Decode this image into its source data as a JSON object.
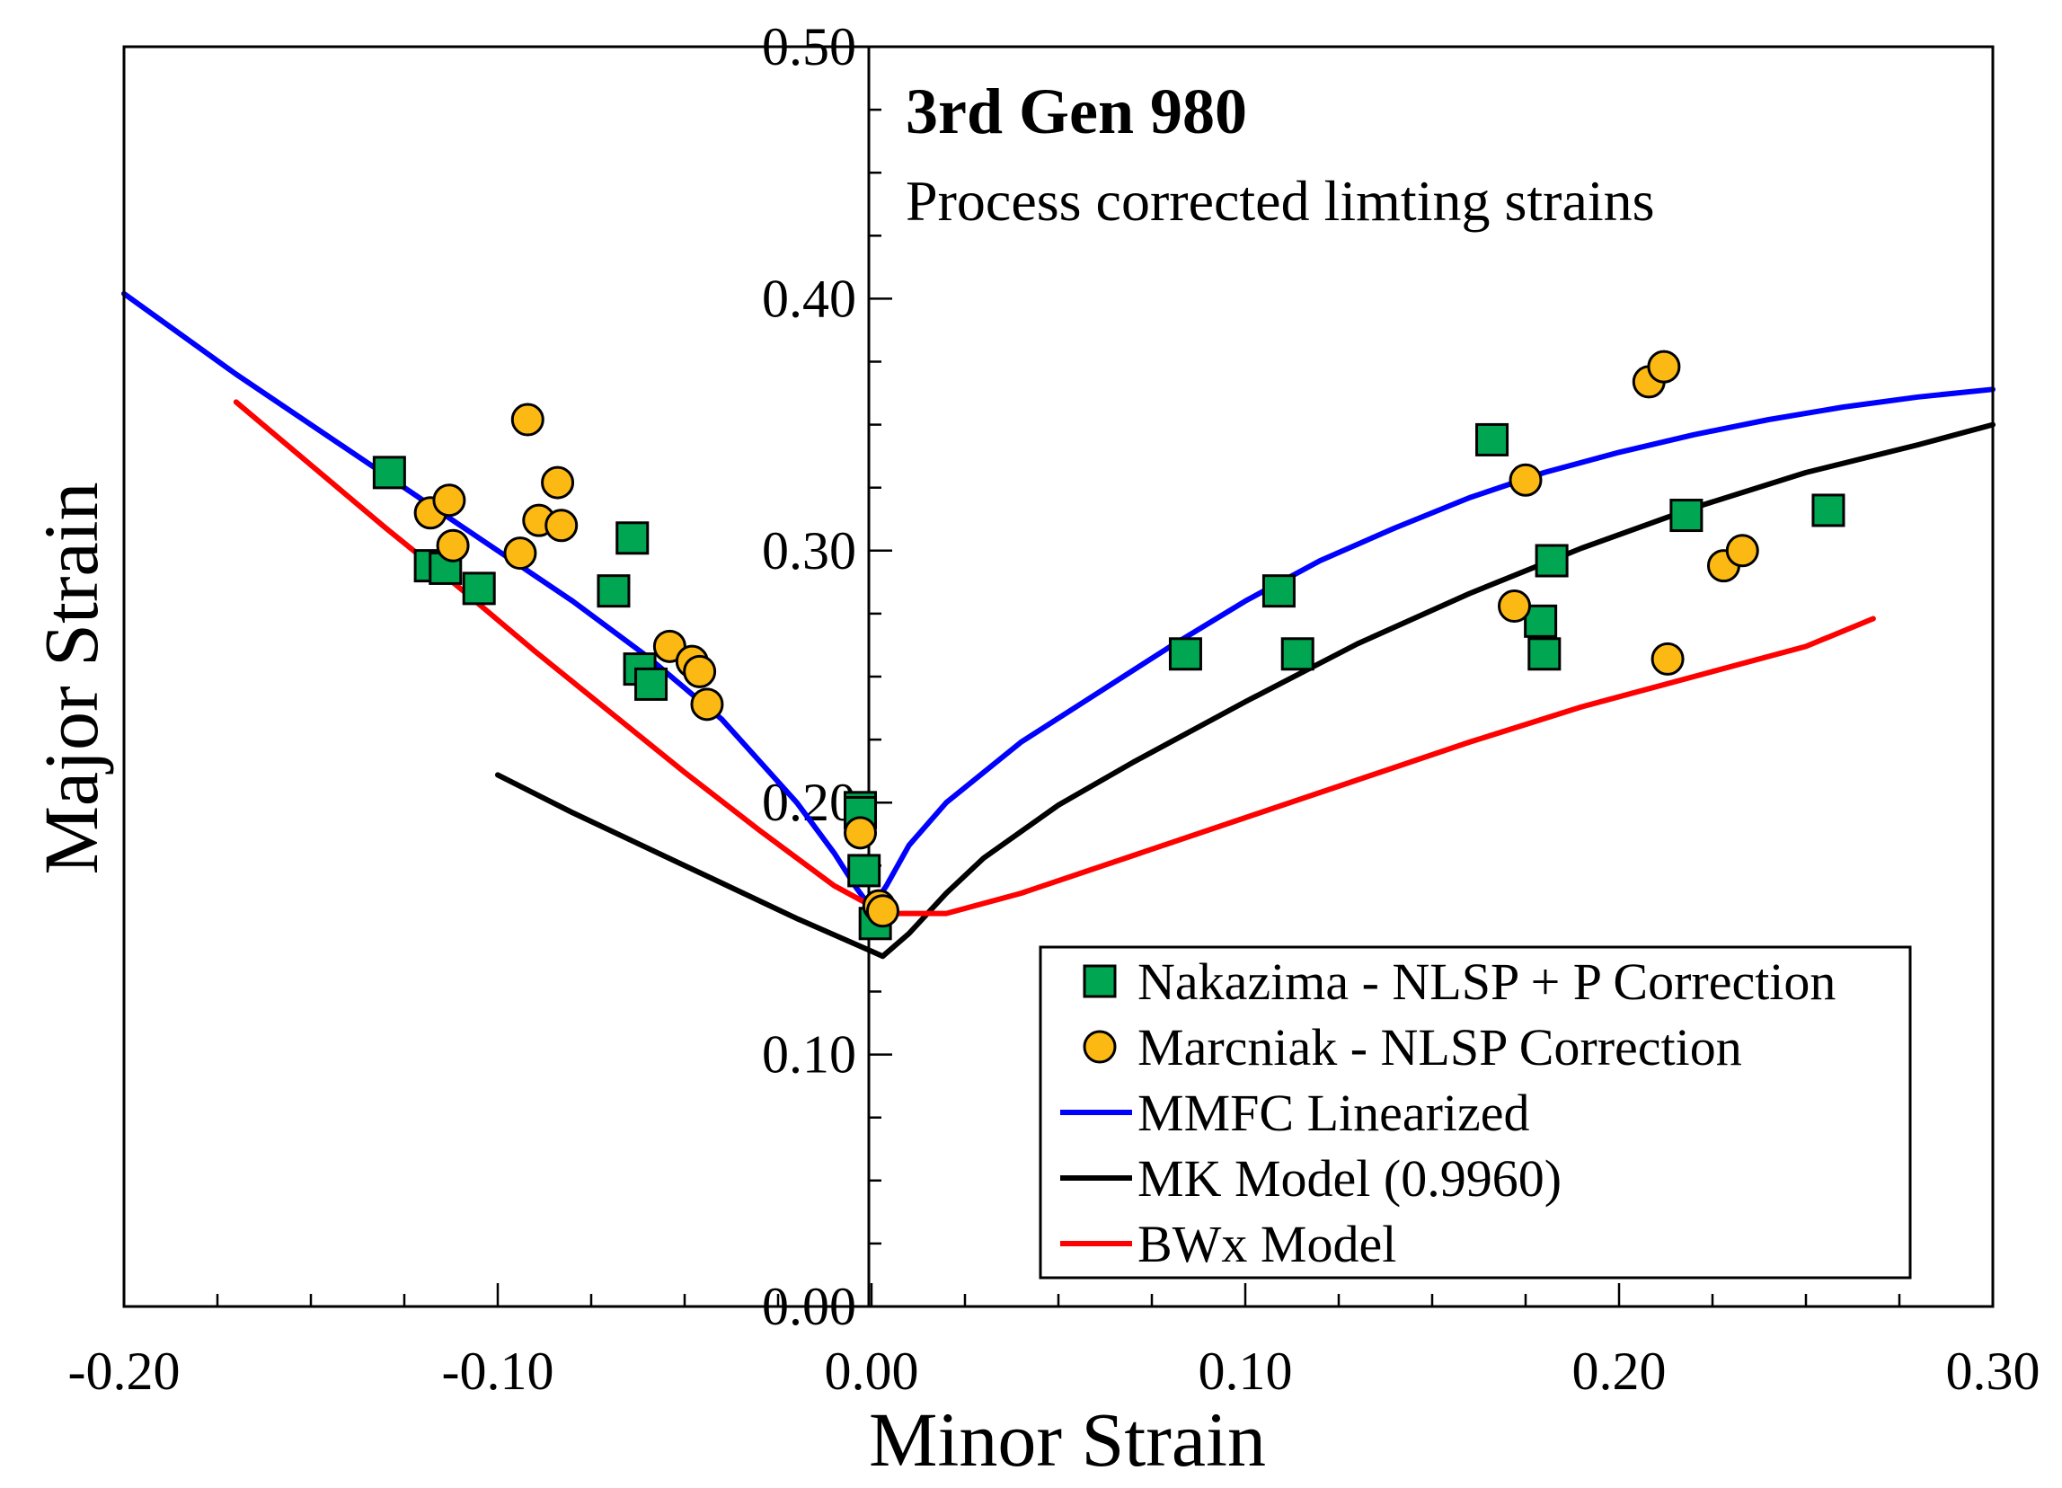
{
  "chart_data": {
    "type": "scatter",
    "title": "3rd Gen 980",
    "subtitle": "Process corrected limting strains",
    "xlabel": "Minor Strain",
    "ylabel": "Major Strain",
    "xlim": [
      -0.2,
      0.3
    ],
    "ylim": [
      0.0,
      0.5
    ],
    "grid": false,
    "legend_position": "bottom-right",
    "x_tick_labels": [
      "-0.20",
      "-0.10",
      "0.00",
      "0.10",
      "0.20",
      "0.30"
    ],
    "x_ticks": [
      -0.2,
      -0.1,
      0.0,
      0.1,
      0.2,
      0.3
    ],
    "y_tick_labels": [
      "0.00",
      "0.10",
      "0.20",
      "0.30",
      "0.40",
      "0.50"
    ],
    "y_ticks": [
      0.0,
      0.1,
      0.2,
      0.3,
      0.4,
      0.5
    ],
    "series": [
      {
        "name": "Nakazima - NLSP + P Correction",
        "kind": "scatter",
        "marker": "square",
        "color": "#00a651",
        "points": [
          [
            -0.129,
            0.331
          ],
          [
            -0.118,
            0.294
          ],
          [
            -0.114,
            0.293
          ],
          [
            -0.105,
            0.285
          ],
          [
            -0.069,
            0.284
          ],
          [
            -0.064,
            0.305
          ],
          [
            -0.062,
            0.253
          ],
          [
            -0.059,
            0.247
          ],
          [
            -0.003,
            0.198
          ],
          [
            -0.003,
            0.196
          ],
          [
            -0.002,
            0.173
          ],
          [
            0.001,
            0.152
          ],
          [
            0.084,
            0.259
          ],
          [
            0.109,
            0.284
          ],
          [
            0.114,
            0.259
          ],
          [
            0.166,
            0.344
          ],
          [
            0.179,
            0.272
          ],
          [
            0.18,
            0.259
          ],
          [
            0.182,
            0.296
          ],
          [
            0.218,
            0.314
          ],
          [
            0.256,
            0.316
          ]
        ]
      },
      {
        "name": "Marcniak - NLSP Correction",
        "kind": "scatter",
        "marker": "circle",
        "color": "#fdb913",
        "points": [
          [
            -0.118,
            0.315
          ],
          [
            -0.113,
            0.32
          ],
          [
            -0.112,
            0.302
          ],
          [
            -0.094,
            0.299
          ],
          [
            -0.092,
            0.352
          ],
          [
            -0.089,
            0.312
          ],
          [
            -0.084,
            0.327
          ],
          [
            -0.083,
            0.31
          ],
          [
            -0.054,
            0.262
          ],
          [
            -0.048,
            0.256
          ],
          [
            -0.046,
            0.252
          ],
          [
            -0.044,
            0.239
          ],
          [
            -0.003,
            0.188
          ],
          [
            0.002,
            0.159
          ],
          [
            0.003,
            0.157
          ],
          [
            0.172,
            0.278
          ],
          [
            0.175,
            0.328
          ],
          [
            0.208,
            0.367
          ],
          [
            0.212,
            0.373
          ],
          [
            0.213,
            0.257
          ],
          [
            0.228,
            0.294
          ],
          [
            0.233,
            0.3
          ]
        ]
      },
      {
        "name": "MMFC Linearized",
        "kind": "line",
        "color": "#0000ff",
        "points": [
          [
            -0.2,
            0.402
          ],
          [
            -0.17,
            0.37
          ],
          [
            -0.14,
            0.34
          ],
          [
            -0.11,
            0.31
          ],
          [
            -0.08,
            0.28
          ],
          [
            -0.06,
            0.258
          ],
          [
            -0.04,
            0.233
          ],
          [
            -0.02,
            0.2
          ],
          [
            -0.01,
            0.18
          ],
          [
            -0.004,
            0.166
          ],
          [
            0.0,
            0.158
          ],
          [
            0.004,
            0.167
          ],
          [
            0.01,
            0.183
          ],
          [
            0.02,
            0.2
          ],
          [
            0.04,
            0.224
          ],
          [
            0.06,
            0.243
          ],
          [
            0.08,
            0.262
          ],
          [
            0.1,
            0.28
          ],
          [
            0.12,
            0.296
          ],
          [
            0.14,
            0.309
          ],
          [
            0.16,
            0.321
          ],
          [
            0.18,
            0.331
          ],
          [
            0.2,
            0.339
          ],
          [
            0.22,
            0.346
          ],
          [
            0.24,
            0.352
          ],
          [
            0.26,
            0.357
          ],
          [
            0.28,
            0.361
          ],
          [
            0.3,
            0.364
          ]
        ]
      },
      {
        "name": "MK Model (0.9960)",
        "kind": "line",
        "color": "#000000",
        "points": [
          [
            -0.1,
            0.211
          ],
          [
            -0.08,
            0.196
          ],
          [
            -0.06,
            0.182
          ],
          [
            -0.04,
            0.168
          ],
          [
            -0.02,
            0.154
          ],
          [
            0.0,
            0.141
          ],
          [
            0.003,
            0.139
          ],
          [
            0.01,
            0.148
          ],
          [
            0.02,
            0.164
          ],
          [
            0.03,
            0.178
          ],
          [
            0.05,
            0.199
          ],
          [
            0.07,
            0.216
          ],
          [
            0.1,
            0.24
          ],
          [
            0.13,
            0.263
          ],
          [
            0.16,
            0.283
          ],
          [
            0.19,
            0.301
          ],
          [
            0.22,
            0.317
          ],
          [
            0.25,
            0.331
          ],
          [
            0.28,
            0.342
          ],
          [
            0.3,
            0.35
          ]
        ]
      },
      {
        "name": "BWx Model",
        "kind": "line",
        "color": "#ff0000",
        "points": [
          [
            -0.17,
            0.359
          ],
          [
            -0.15,
            0.334
          ],
          [
            -0.13,
            0.309
          ],
          [
            -0.11,
            0.285
          ],
          [
            -0.09,
            0.26
          ],
          [
            -0.07,
            0.236
          ],
          [
            -0.05,
            0.212
          ],
          [
            -0.03,
            0.189
          ],
          [
            -0.01,
            0.167
          ],
          [
            0.0,
            0.159
          ],
          [
            0.005,
            0.156
          ],
          [
            0.02,
            0.156
          ],
          [
            0.04,
            0.164
          ],
          [
            0.07,
            0.179
          ],
          [
            0.1,
            0.194
          ],
          [
            0.13,
            0.209
          ],
          [
            0.16,
            0.224
          ],
          [
            0.19,
            0.238
          ],
          [
            0.22,
            0.25
          ],
          [
            0.25,
            0.262
          ],
          [
            0.268,
            0.273
          ]
        ]
      }
    ]
  }
}
